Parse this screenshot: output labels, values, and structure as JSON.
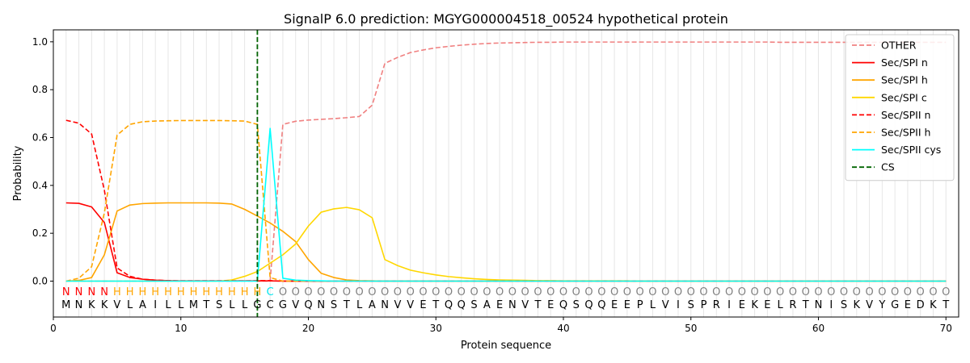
{
  "chart_data": {
    "type": "line",
    "title": "SignalP 6.0 prediction: MGYG000004518_00524 hypothetical protein",
    "xlabel": "Protein sequence",
    "ylabel": "Probability",
    "xlim": [
      0,
      71
    ],
    "ylim": [
      -0.15,
      1.05
    ],
    "xticks": [
      0,
      10,
      20,
      30,
      40,
      50,
      60,
      70
    ],
    "yticks": [
      0.0,
      0.2,
      0.4,
      0.6,
      0.8,
      1.0
    ],
    "ytick_labels": [
      "0.0",
      "0.2",
      "0.4",
      "0.6",
      "0.8",
      "1.0"
    ],
    "grid": "vertical lines at each residue",
    "legend_position": "top-right",
    "sequence": [
      "M",
      "N",
      "K",
      "K",
      "V",
      "L",
      "A",
      "I",
      "L",
      "L",
      "M",
      "T",
      "S",
      "L",
      "L",
      "G",
      "C",
      "G",
      "V",
      "Q",
      "N",
      "S",
      "T",
      "L",
      "A",
      "N",
      "V",
      "V",
      "E",
      "T",
      "Q",
      "Q",
      "S",
      "A",
      "E",
      "N",
      "V",
      "T",
      "E",
      "Q",
      "S",
      "Q",
      "Q",
      "E",
      "E",
      "P",
      "L",
      "V",
      "I",
      "S",
      "P",
      "R",
      "I",
      "E",
      "K",
      "E",
      "L",
      "R",
      "T",
      "N",
      "I",
      "S",
      "K",
      "V",
      "Y",
      "G",
      "E",
      "D",
      "K",
      "T"
    ],
    "region_labels": [
      "N",
      "N",
      "N",
      "N",
      "H",
      "H",
      "H",
      "H",
      "H",
      "H",
      "H",
      "H",
      "H",
      "H",
      "H",
      "H",
      "C",
      "O",
      "O",
      "O",
      "O",
      "O",
      "O",
      "O",
      "O",
      "O",
      "O",
      "O",
      "O",
      "O",
      "O",
      "O",
      "O",
      "O",
      "O",
      "O",
      "O",
      "O",
      "O",
      "O",
      "O",
      "O",
      "O",
      "O",
      "O",
      "O",
      "O",
      "O",
      "O",
      "O",
      "O",
      "O",
      "O",
      "O",
      "O",
      "O",
      "O",
      "O",
      "O",
      "O",
      "O",
      "O",
      "O",
      "O",
      "O",
      "O",
      "O",
      "O",
      "O",
      "O"
    ],
    "region_colors": {
      "N": "#ff0000",
      "H": "#ffa500",
      "C": "#00e5ee",
      "O": "#808080"
    },
    "cleavage_site": 16,
    "series": [
      {
        "name": "OTHER",
        "color": "#f08080",
        "dash": true,
        "values": [
          0.0,
          0.0,
          0.0,
          0.0,
          0.0,
          0.0,
          0.0,
          0.0,
          0.0,
          0.0,
          0.0,
          0.0,
          0.0,
          0.0,
          0.0,
          0.0,
          0.0,
          0.655,
          0.668,
          0.673,
          0.676,
          0.679,
          0.683,
          0.688,
          0.735,
          0.91,
          0.935,
          0.955,
          0.966,
          0.975,
          0.981,
          0.986,
          0.99,
          0.993,
          0.995,
          0.996,
          0.997,
          0.998,
          0.998,
          0.999,
          0.999,
          0.999,
          0.999,
          0.999,
          0.999,
          0.999,
          0.999,
          0.999,
          0.999,
          0.999,
          0.999,
          0.999,
          0.999,
          0.999,
          0.999,
          0.999,
          0.998,
          0.998,
          0.998,
          0.998,
          0.998,
          0.998,
          0.998,
          0.998,
          0.998,
          0.998,
          0.998,
          0.998,
          0.998,
          0.998
        ]
      },
      {
        "name": "Sec/SPI n",
        "color": "#ff0000",
        "dash": false,
        "values": [
          0.327,
          0.325,
          0.31,
          0.245,
          0.035,
          0.015,
          0.008,
          0.004,
          0.002,
          0.001,
          0.001,
          0.001,
          0.001,
          0.001,
          0.001,
          0.001,
          0.001,
          0.0,
          0.0,
          0.0,
          0.0,
          0.0,
          0.0,
          0.0,
          0.0,
          0.0,
          0.0,
          0.0,
          0.0,
          0.0,
          0.0,
          0.0,
          0.0,
          0.0,
          0.0,
          0.0,
          0.0,
          0.0,
          0.0,
          0.0,
          0.0,
          0.0,
          0.0,
          0.0,
          0.0,
          0.0,
          0.0,
          0.0,
          0.0,
          0.0,
          0.0,
          0.0,
          0.0,
          0.0,
          0.0,
          0.0,
          0.0,
          0.0,
          0.0,
          0.0,
          0.0,
          0.0,
          0.0,
          0.0,
          0.0,
          0.0,
          0.0,
          0.0,
          0.0,
          0.0
        ]
      },
      {
        "name": "Sec/SPI h",
        "color": "#ffa500",
        "dash": false,
        "values": [
          0.0,
          0.003,
          0.015,
          0.11,
          0.293,
          0.318,
          0.324,
          0.326,
          0.327,
          0.327,
          0.327,
          0.327,
          0.326,
          0.322,
          0.3,
          0.272,
          0.243,
          0.208,
          0.165,
          0.09,
          0.033,
          0.015,
          0.005,
          0.002,
          0.001,
          0.0,
          0.0,
          0.0,
          0.0,
          0.0,
          0.0,
          0.0,
          0.0,
          0.0,
          0.0,
          0.0,
          0.0,
          0.0,
          0.0,
          0.0,
          0.0,
          0.0,
          0.0,
          0.0,
          0.0,
          0.0,
          0.0,
          0.0,
          0.0,
          0.0,
          0.0,
          0.0,
          0.0,
          0.0,
          0.0,
          0.0,
          0.0,
          0.0,
          0.0,
          0.0,
          0.0,
          0.0,
          0.0,
          0.0,
          0.0,
          0.0,
          0.0,
          0.0,
          0.0,
          0.0
        ]
      },
      {
        "name": "Sec/SPI c",
        "color": "#ffd700",
        "dash": false,
        "values": [
          0.0,
          0.0,
          0.0,
          0.0,
          0.0,
          0.0,
          0.0,
          0.0,
          0.0,
          0.0,
          0.0,
          0.0,
          0.0,
          0.005,
          0.02,
          0.04,
          0.075,
          0.11,
          0.155,
          0.23,
          0.288,
          0.302,
          0.308,
          0.298,
          0.265,
          0.09,
          0.065,
          0.046,
          0.035,
          0.026,
          0.019,
          0.014,
          0.01,
          0.007,
          0.005,
          0.004,
          0.003,
          0.002,
          0.002,
          0.001,
          0.001,
          0.001,
          0.001,
          0.001,
          0.001,
          0.0,
          0.0,
          0.0,
          0.0,
          0.0,
          0.0,
          0.0,
          0.0,
          0.0,
          0.0,
          0.0,
          0.0,
          0.0,
          0.0,
          0.0,
          0.0,
          0.0,
          0.0,
          0.0,
          0.0,
          0.0,
          0.0,
          0.0,
          0.0,
          0.0
        ]
      },
      {
        "name": "Sec/SPII n",
        "color": "#ff0000",
        "dash": true,
        "values": [
          0.672,
          0.66,
          0.615,
          0.38,
          0.055,
          0.02,
          0.008,
          0.004,
          0.002,
          0.001,
          0.001,
          0.001,
          0.001,
          0.001,
          0.001,
          0.002,
          0.002,
          0.0,
          0.0,
          0.0,
          0.0,
          0.0,
          0.0,
          0.0,
          0.0,
          0.0,
          0.0,
          0.0,
          0.0,
          0.0,
          0.0,
          0.0,
          0.0,
          0.0,
          0.0,
          0.0,
          0.0,
          0.0,
          0.0,
          0.0,
          0.0,
          0.0,
          0.0,
          0.0,
          0.0,
          0.0,
          0.0,
          0.0,
          0.0,
          0.0,
          0.0,
          0.0,
          0.0,
          0.0,
          0.0,
          0.0,
          0.0,
          0.0,
          0.0,
          0.0,
          0.0,
          0.0,
          0.0,
          0.0,
          0.0,
          0.0,
          0.0,
          0.0,
          0.0,
          0.0
        ]
      },
      {
        "name": "Sec/SPII h",
        "color": "#ffa500",
        "dash": true,
        "values": [
          0.0,
          0.012,
          0.06,
          0.285,
          0.61,
          0.655,
          0.666,
          0.669,
          0.67,
          0.671,
          0.671,
          0.671,
          0.671,
          0.67,
          0.669,
          0.655,
          0.015,
          0.0,
          0.0,
          0.0,
          0.0,
          0.0,
          0.0,
          0.0,
          0.0,
          0.0,
          0.0,
          0.0,
          0.0,
          0.0,
          0.0,
          0.0,
          0.0,
          0.0,
          0.0,
          0.0,
          0.0,
          0.0,
          0.0,
          0.0,
          0.0,
          0.0,
          0.0,
          0.0,
          0.0,
          0.0,
          0.0,
          0.0,
          0.0,
          0.0,
          0.0,
          0.0,
          0.0,
          0.0,
          0.0,
          0.0,
          0.0,
          0.0,
          0.0,
          0.0,
          0.0,
          0.0,
          0.0,
          0.0,
          0.0,
          0.0,
          0.0,
          0.0,
          0.0,
          0.0
        ]
      },
      {
        "name": "Sec/SPII cys",
        "color": "#00ffff",
        "dash": false,
        "values": [
          0.0,
          0.0,
          0.0,
          0.0,
          0.0,
          0.0,
          0.0,
          0.0,
          0.0,
          0.0,
          0.0,
          0.0,
          0.0,
          0.0,
          0.0,
          0.0,
          0.638,
          0.012,
          0.004,
          0.002,
          0.001,
          0.0,
          0.0,
          0.0,
          0.0,
          0.0,
          0.0,
          0.0,
          0.0,
          0.0,
          0.0,
          0.0,
          0.0,
          0.0,
          0.0,
          0.0,
          0.0,
          0.0,
          0.0,
          0.0,
          0.0,
          0.0,
          0.0,
          0.0,
          0.0,
          0.0,
          0.0,
          0.0,
          0.0,
          0.0,
          0.0,
          0.0,
          0.0,
          0.0,
          0.0,
          0.0,
          0.0,
          0.0,
          0.0,
          0.0,
          0.0,
          0.0,
          0.0,
          0.0,
          0.0,
          0.0,
          0.0,
          0.0,
          0.0,
          0.0
        ]
      }
    ],
    "cs_series": {
      "name": "CS",
      "color": "#006400",
      "dash": true
    }
  }
}
